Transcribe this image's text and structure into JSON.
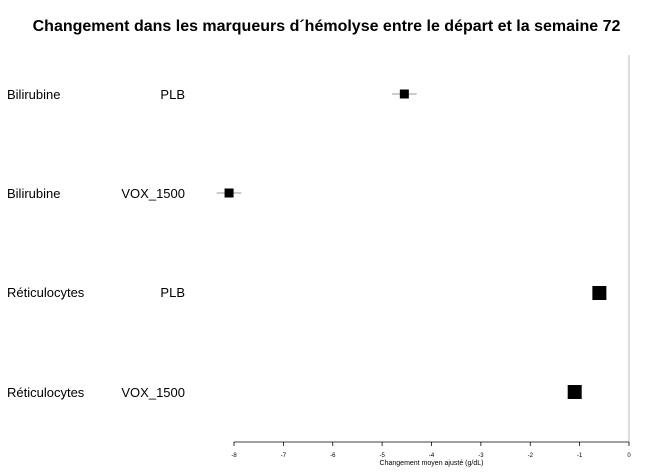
{
  "chart_data": {
    "type": "forest",
    "title": "Changement dans les marqueurs d´hémolyse entre le départ et la semaine 72",
    "xlabel": "Changement moyen ajusté (g/dL)",
    "xlim": [
      -8,
      0
    ],
    "xticks": [
      "-8",
      "-7",
      "-6",
      "-5",
      "-4",
      "-3",
      "-2",
      "-1",
      "0"
    ],
    "rows": [
      {
        "category": "Bilirubine",
        "group": "PLB",
        "estimate": -4.55,
        "ci": [
          -4.8,
          -4.3
        ],
        "size": "medium"
      },
      {
        "category": "Bilirubine",
        "group": "VOX_1500",
        "estimate": -8.1,
        "ci": [
          -8.35,
          -7.85
        ],
        "size": "medium"
      },
      {
        "category": "Réticulocytes",
        "group": "PLB",
        "estimate": -0.6,
        "ci": [
          -0.65,
          -0.55
        ],
        "size": "large"
      },
      {
        "category": "Réticulocytes",
        "group": "VOX_1500",
        "estimate": -1.1,
        "ci": [
          -1.15,
          -1.05
        ],
        "size": "large"
      }
    ]
  }
}
